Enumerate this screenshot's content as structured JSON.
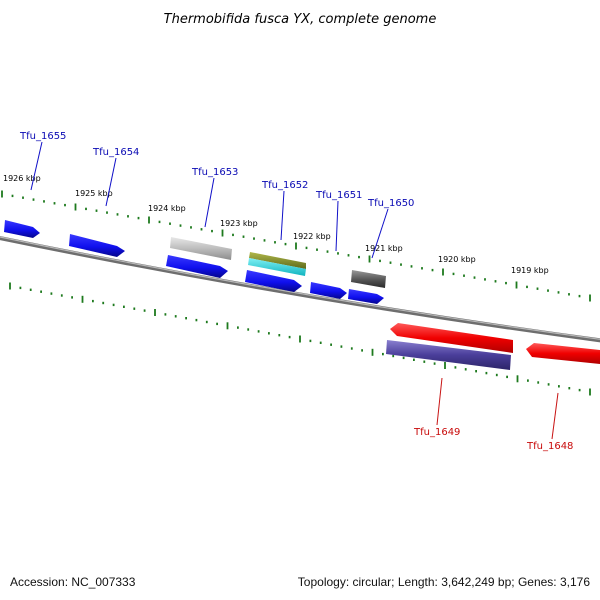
{
  "title": "Thermobifida fusca YX, complete genome",
  "footer": {
    "accession": "Accession: NC_007333",
    "summary": "Topology: circular; Length: 3,642,249 bp; Genes: 3,176"
  },
  "colors": {
    "background": "#ffffff",
    "backbone": "#8a8a8a",
    "ticks": "#1e7a1e",
    "forward_label": "#0a0ab4",
    "reverse_label": "#c80a0a"
  },
  "scale": {
    "labels": [
      "1926 kbp",
      "1925 kbp",
      "1924 kbp",
      "1923 kbp",
      "1922 kbp",
      "1921 kbp",
      "1920 kbp",
      "1919 kbp"
    ]
  },
  "genes": {
    "forward": [
      {
        "name": "Tfu_1655",
        "color": "blue"
      },
      {
        "name": "Tfu_1654",
        "color": "blue"
      },
      {
        "name": "Tfu_1653",
        "color": "blue"
      },
      {
        "name": "Tfu_1652",
        "color": "blue"
      },
      {
        "name": "Tfu_1651",
        "color": "blue"
      },
      {
        "name": "Tfu_1650",
        "color": "blue"
      }
    ],
    "reverse": [
      {
        "name": "Tfu_1649",
        "color": "red"
      },
      {
        "name": "Tfu_1648",
        "color": "red"
      }
    ]
  }
}
